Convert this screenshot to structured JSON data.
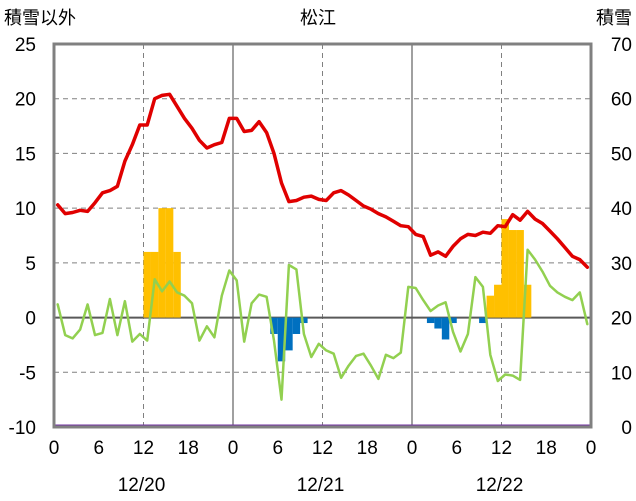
{
  "chart_data": {
    "type": "bar+line",
    "title": "松江",
    "left_axis": {
      "label": "積雪以外",
      "ticks": [
        25,
        20,
        15,
        10,
        5,
        0,
        -5,
        -10
      ],
      "range": [
        -10,
        25
      ]
    },
    "right_axis": {
      "label": "積雪",
      "ticks": [
        70,
        60,
        50,
        40,
        30,
        20,
        10,
        0
      ],
      "range": [
        0,
        70
      ]
    },
    "x_ticks": [
      "0",
      "6",
      "12",
      "18",
      "0",
      "6",
      "12",
      "18",
      "0",
      "6",
      "12",
      "18",
      "0"
    ],
    "date_labels": [
      "12/20",
      "12/21",
      "12/22"
    ],
    "hours": 72,
    "grid": {
      "solid_hours": [
        24,
        48
      ],
      "dashed_hours": [
        12,
        36,
        60
      ],
      "dashed_values": [
        20,
        15,
        10,
        5,
        -5
      ]
    },
    "colors": {
      "red": "#e00000",
      "green": "#92d050",
      "orange_bar": "#ffc000",
      "blue_bar": "#0070c0",
      "purple": "#7030a0",
      "frame": "#808080",
      "grid": "#808080"
    },
    "red_line": [
      10.3,
      9.5,
      9.6,
      9.8,
      9.7,
      10.5,
      11.4,
      11.6,
      12.0,
      14.3,
      15.8,
      17.6,
      17.6,
      20.0,
      20.3,
      20.4,
      19.3,
      18.2,
      17.3,
      16.2,
      15.5,
      15.8,
      16.0,
      18.2,
      18.2,
      17.0,
      17.1,
      17.9,
      16.9,
      15.0,
      12.3,
      10.6,
      10.7,
      11.0,
      11.1,
      10.8,
      10.7,
      11.4,
      11.6,
      11.2,
      10.7,
      10.2,
      9.9,
      9.5,
      9.2,
      8.8,
      8.4,
      8.3,
      7.6,
      7.4,
      5.7,
      6.0,
      5.6,
      6.5,
      7.2,
      7.6,
      7.5,
      7.8,
      7.7,
      8.4,
      8.3,
      9.4,
      8.9,
      9.7,
      9.0,
      8.6,
      7.9,
      7.2,
      6.4,
      5.6,
      5.3,
      4.6
    ],
    "green_line": [
      1.2,
      -1.6,
      -1.9,
      -1.1,
      1.2,
      -1.6,
      -1.4,
      1.7,
      -1.6,
      1.5,
      -2.2,
      -1.5,
      -2.1,
      3.5,
      2.4,
      3.3,
      2.3,
      2.0,
      1.3,
      -2.1,
      -0.8,
      -1.8,
      2.0,
      4.3,
      3.4,
      -2.2,
      1.3,
      2.1,
      1.9,
      -2.1,
      -7.5,
      4.8,
      4.4,
      -1.5,
      -3.6,
      -2.4,
      -3.0,
      -3.3,
      -5.5,
      -4.4,
      -3.5,
      -3.3,
      -4.4,
      -5.6,
      -3.4,
      -3.7,
      -3.2,
      2.8,
      2.7,
      1.6,
      0.6,
      1.1,
      1.4,
      -1.3,
      -3.1,
      -1.5,
      3.7,
      2.8,
      -3.4,
      -5.8,
      -5.2,
      -5.3,
      -5.7,
      6.2,
      5.3,
      4.2,
      2.9,
      2.3,
      1.9,
      1.6,
      2.3,
      -0.6
    ],
    "orange_bars": [
      {
        "hour": 12,
        "value": 6
      },
      {
        "hour": 13,
        "value": 6
      },
      {
        "hour": 14,
        "value": 10
      },
      {
        "hour": 15,
        "value": 10
      },
      {
        "hour": 16,
        "value": 6
      },
      {
        "hour": 58,
        "value": 2
      },
      {
        "hour": 59,
        "value": 3
      },
      {
        "hour": 60,
        "value": 9
      },
      {
        "hour": 61,
        "value": 8
      },
      {
        "hour": 62,
        "value": 8
      },
      {
        "hour": 63,
        "value": 3
      }
    ],
    "blue_bars": [
      {
        "hour": 29,
        "value": -1.5
      },
      {
        "hour": 30,
        "value": -4
      },
      {
        "hour": 31,
        "value": -3
      },
      {
        "hour": 32,
        "value": -1.5
      },
      {
        "hour": 33,
        "value": -0.5
      },
      {
        "hour": 50,
        "value": -0.5
      },
      {
        "hour": 51,
        "value": -1
      },
      {
        "hour": 52,
        "value": -2
      },
      {
        "hour": 53,
        "value": -0.5
      },
      {
        "hour": 57,
        "value": -0.5
      }
    ],
    "purple_line_value": -10
  }
}
